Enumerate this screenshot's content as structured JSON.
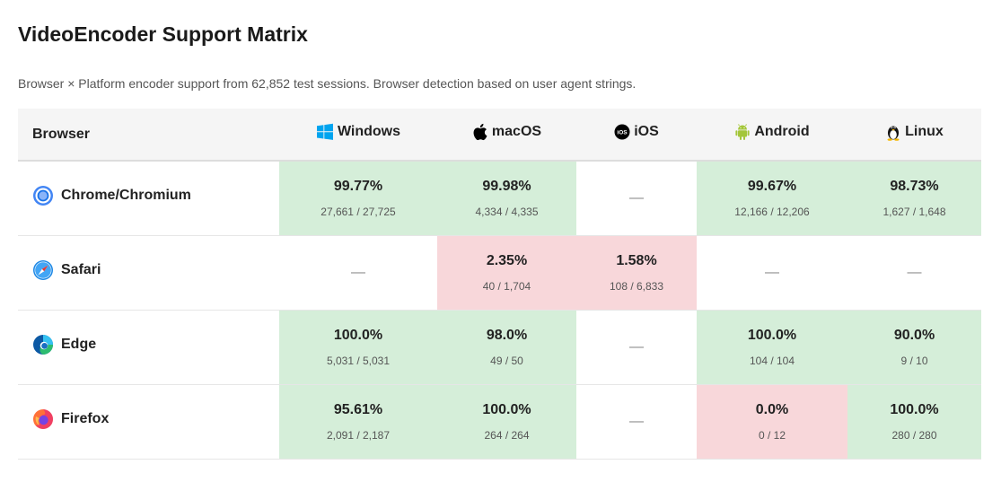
{
  "title": "VideoEncoder Support Matrix",
  "subtitle": "Browser × Platform encoder support from 62,852 test sessions. Browser detection based on user agent strings.",
  "header": {
    "browser_label": "Browser",
    "platforms": [
      {
        "label": "Windows",
        "icon": "windows-icon",
        "color": "#00a4ef"
      },
      {
        "label": "macOS",
        "icon": "apple-icon",
        "color": "#000000"
      },
      {
        "label": "iOS",
        "icon": "ios-icon",
        "color": "#000000"
      },
      {
        "label": "Android",
        "icon": "android-icon",
        "color": "#a4c639"
      },
      {
        "label": "Linux",
        "icon": "tux-icon",
        "color": "#000000"
      }
    ]
  },
  "status_colors": {
    "good": "#d5eed9",
    "bad": "#f8d7da"
  },
  "rows": [
    {
      "browser": "Chrome/Chromium",
      "icon": "chrome-icon",
      "cells": [
        {
          "pct": "99.77%",
          "count": "27,661 / 27,725",
          "status": "good"
        },
        {
          "pct": "99.98%",
          "count": "4,334 / 4,335",
          "status": "good"
        },
        {
          "pct": "—",
          "count": "",
          "status": "none"
        },
        {
          "pct": "99.67%",
          "count": "12,166 / 12,206",
          "status": "good"
        },
        {
          "pct": "98.73%",
          "count": "1,627 / 1,648",
          "status": "good"
        }
      ]
    },
    {
      "browser": "Safari",
      "icon": "safari-icon",
      "cells": [
        {
          "pct": "—",
          "count": "",
          "status": "none"
        },
        {
          "pct": "2.35%",
          "count": "40 / 1,704",
          "status": "bad"
        },
        {
          "pct": "1.58%",
          "count": "108 / 6,833",
          "status": "bad"
        },
        {
          "pct": "—",
          "count": "",
          "status": "none"
        },
        {
          "pct": "—",
          "count": "",
          "status": "none"
        }
      ]
    },
    {
      "browser": "Edge",
      "icon": "edge-icon",
      "cells": [
        {
          "pct": "100.0%",
          "count": "5,031 / 5,031",
          "status": "good"
        },
        {
          "pct": "98.0%",
          "count": "49 / 50",
          "status": "good"
        },
        {
          "pct": "—",
          "count": "",
          "status": "none"
        },
        {
          "pct": "100.0%",
          "count": "104 / 104",
          "status": "good"
        },
        {
          "pct": "90.0%",
          "count": "9 / 10",
          "status": "good"
        }
      ]
    },
    {
      "browser": "Firefox",
      "icon": "firefox-icon",
      "cells": [
        {
          "pct": "95.61%",
          "count": "2,091 / 2,187",
          "status": "good"
        },
        {
          "pct": "100.0%",
          "count": "264 / 264",
          "status": "good"
        },
        {
          "pct": "—",
          "count": "",
          "status": "none"
        },
        {
          "pct": "0.0%",
          "count": "0 / 12",
          "status": "bad"
        },
        {
          "pct": "100.0%",
          "count": "280 / 280",
          "status": "good"
        }
      ]
    }
  ]
}
